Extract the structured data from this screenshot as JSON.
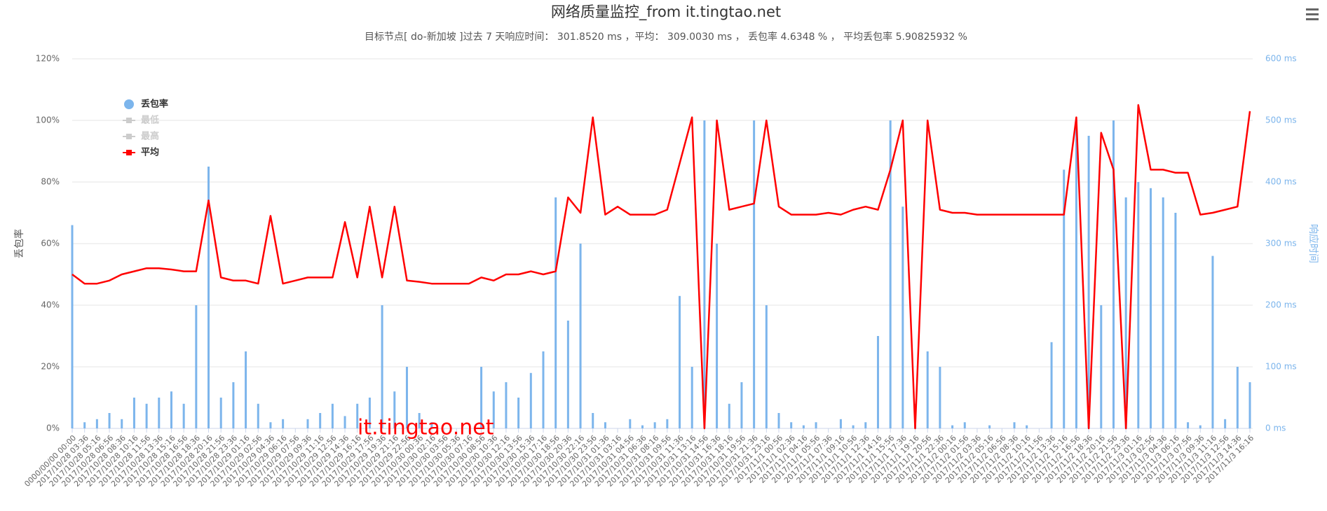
{
  "chart_data": {
    "type": "dual-axis",
    "title": "网络质量监控_from it.tingtao.net",
    "subtitle": "目标节点[ do-新加坡 ]过去 7 天响应时间： 301.8520 ms ，平均： 309.0030 ms ， 丢包率 4.6348 % ， 平均丢包率 5.90825932 %",
    "ylabel": "丢包率",
    "y2label": "响应时间",
    "watermark": "it.tingtao.net",
    "ylim": [
      0,
      120
    ],
    "yticks": [
      {
        "value": 0,
        "label": "0%"
      },
      {
        "value": 20,
        "label": "20%"
      },
      {
        "value": 40,
        "label": "40%"
      },
      {
        "value": 60,
        "label": "60%"
      },
      {
        "value": 80,
        "label": "80%"
      },
      {
        "value": 100,
        "label": "100%"
      },
      {
        "value": 120,
        "label": "120%"
      }
    ],
    "y2lim": [
      0,
      600
    ],
    "y2ticks": [
      {
        "value": 0,
        "label": "0 ms"
      },
      {
        "value": 100,
        "label": "100 ms"
      },
      {
        "value": 200,
        "label": "200 ms"
      },
      {
        "value": 300,
        "label": "300 ms"
      },
      {
        "value": 400,
        "label": "400 ms"
      },
      {
        "value": 500,
        "label": "500 ms"
      },
      {
        "value": 600,
        "label": "600 ms"
      }
    ],
    "grid": true,
    "legend": "top-left",
    "categories": [
      "0000/00/00 00:00",
      "2017/10/28 03:36",
      "2017/10/28 05:16",
      "2017/10/28 06:56",
      "2017/10/28 08:36",
      "2017/10/28 10:16",
      "2017/10/28 11:56",
      "2017/10/28 13:36",
      "2017/10/28 15:16",
      "2017/10/28 16:56",
      "2017/10/28 18:36",
      "2017/10/28 20:16",
      "2017/10/28 21:56",
      "2017/10/28 23:36",
      "2017/10/29 01:16",
      "2017/10/29 02:56",
      "2017/10/29 04:36",
      "2017/10/29 06:16",
      "2017/10/29 07:56",
      "2017/10/29 09:36",
      "2017/10/29 11:16",
      "2017/10/29 12:56",
      "2017/10/29 14:36",
      "2017/10/29 16:16",
      "2017/10/29 17:56",
      "2017/10/29 19:36",
      "2017/10/29 21:16",
      "2017/10/29 22:56",
      "2017/10/30 00:36",
      "2017/10/30 02:16",
      "2017/10/30 03:56",
      "2017/10/30 05:36",
      "2017/10/30 07:16",
      "2017/10/30 08:56",
      "2017/10/30 10:36",
      "2017/10/30 12:16",
      "2017/10/30 13:56",
      "2017/10/30 15:36",
      "2017/10/30 17:16",
      "2017/10/30 18:56",
      "2017/10/30 20:36",
      "2017/10/30 22:16",
      "2017/10/30 23:56",
      "2017/10/31 01:36",
      "2017/10/31 03:16",
      "2017/10/31 04:56",
      "2017/10/31 06:36",
      "2017/10/31 08:16",
      "2017/10/31 09:56",
      "2017/10/31 11:36",
      "2017/10/31 13:16",
      "2017/10/31 14:56",
      "2017/10/31 16:36",
      "2017/10/31 18:16",
      "2017/10/31 19:56",
      "2017/10/31 21:36",
      "2017/10/31 23:16",
      "2017/11/1 00:56",
      "2017/11/1 02:36",
      "2017/11/1 04:16",
      "2017/11/1 05:56",
      "2017/11/1 07:36",
      "2017/11/1 09:16",
      "2017/11/1 10:56",
      "2017/11/1 12:36",
      "2017/11/1 14:16",
      "2017/11/1 15:56",
      "2017/11/1 17:36",
      "2017/11/1 19:16",
      "2017/11/1 20:56",
      "2017/11/1 22:36",
      "2017/11/2 00:16",
      "2017/11/2 01:56",
      "2017/11/2 03:36",
      "2017/11/2 05:16",
      "2017/11/2 06:56",
      "2017/11/2 08:36",
      "2017/11/2 10:16",
      "2017/11/2 11:56",
      "2017/11/2 13:36",
      "2017/11/2 15:16",
      "2017/11/2 16:56",
      "2017/11/2 18:36",
      "2017/11/2 20:16",
      "2017/11/2 21:56",
      "2017/11/2 23:36",
      "2017/11/3 01:16",
      "2017/11/3 02:56",
      "2017/11/3 04:36",
      "2017/11/3 06:16",
      "2017/11/3 07:56",
      "2017/11/3 09:36",
      "2017/11/3 11:16",
      "2017/11/3 12:56",
      "2017/11/3 14:36",
      "2017/11/3 16:16"
    ],
    "series": [
      {
        "name": "丢包率",
        "kind": "bar",
        "axis": "y",
        "color": "#7cb5ec",
        "visible": true,
        "values": [
          66,
          2,
          3,
          5,
          3,
          10,
          8,
          10,
          12,
          8,
          40,
          85,
          10,
          15,
          25,
          8,
          2,
          3,
          0,
          3,
          5,
          8,
          4,
          8,
          10,
          40,
          12,
          20,
          5,
          2,
          0,
          0,
          0,
          20,
          12,
          15,
          10,
          18,
          25,
          75,
          35,
          60,
          5,
          2,
          0,
          3,
          1,
          2,
          3,
          43,
          20,
          100,
          60,
          8,
          15,
          100,
          40,
          5,
          2,
          1,
          2,
          0,
          3,
          1,
          2,
          30,
          100,
          72,
          8,
          25,
          20,
          1,
          2,
          0,
          1,
          0,
          2,
          1,
          0,
          28,
          84,
          100,
          95,
          40,
          100,
          75,
          80,
          78,
          75,
          70,
          2,
          1,
          56,
          3,
          20,
          15
        ]
      },
      {
        "name": "最低",
        "kind": "line",
        "axis": "y2",
        "color": "#cccccc",
        "visible": false
      },
      {
        "name": "最高",
        "kind": "line",
        "axis": "y2",
        "color": "#cccccc",
        "visible": false
      },
      {
        "name": "平均",
        "kind": "line",
        "axis": "y2",
        "color": "#ff0000",
        "visible": true,
        "values": [
          250,
          235,
          235,
          240,
          250,
          255,
          260,
          260,
          258,
          255,
          255,
          370,
          245,
          240,
          240,
          235,
          345,
          235,
          240,
          245,
          245,
          245,
          335,
          245,
          360,
          245,
          360,
          240,
          238,
          235,
          235,
          235,
          235,
          245,
          240,
          250,
          250,
          255,
          250,
          255,
          375,
          350,
          505,
          347,
          360,
          347,
          347,
          347,
          355,
          430,
          505,
          0,
          500,
          355,
          360,
          365,
          500,
          360,
          347,
          347,
          347,
          350,
          347,
          355,
          360,
          355,
          420,
          500,
          0,
          500,
          355,
          350,
          350,
          347,
          347,
          347,
          347,
          347,
          347,
          347,
          347,
          505,
          0,
          480,
          420,
          0,
          525,
          420,
          420,
          415,
          415,
          347,
          350,
          355,
          360,
          515
        ]
      }
    ]
  }
}
